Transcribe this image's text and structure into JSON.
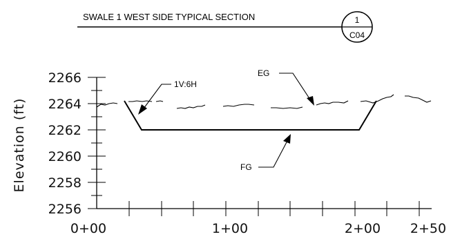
{
  "title": {
    "text": "SWALE 1 WEST SIDE TYPICAL SECTION",
    "detail_number": "1",
    "sheet": "C04"
  },
  "axes": {
    "ylabel": "Elevation (ft)",
    "yticks": [
      "2266",
      "2264",
      "2262",
      "2260",
      "2258",
      "2256"
    ],
    "xticks": [
      "0+00",
      "1+00",
      "2+00",
      "2+50"
    ]
  },
  "callouts": {
    "slope": "1V:6H",
    "existing": "EG",
    "finished": "FG"
  }
}
